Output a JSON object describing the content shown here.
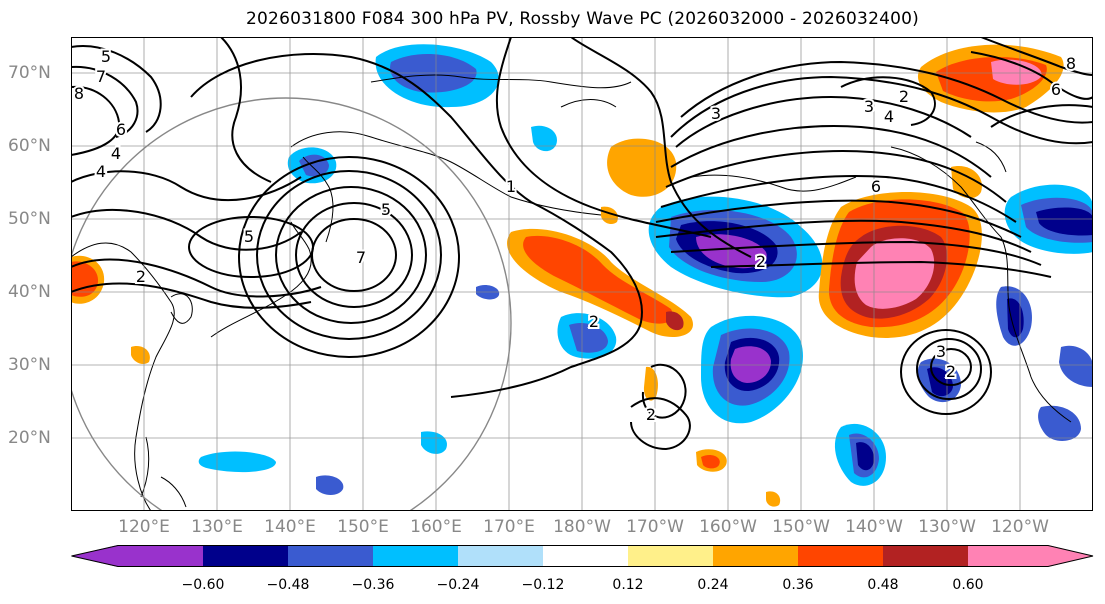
{
  "title": "2026031800 F084 300 hPa PV, Rossby Wave PC (2026032000 - 2026032400)",
  "lon_labels": [
    "120°E",
    "130°E",
    "140°E",
    "150°E",
    "160°E",
    "170°E",
    "180°W",
    "170°W",
    "160°W",
    "150°W",
    "140°W",
    "130°W",
    "120°W"
  ],
  "lat_labels": [
    "70°N",
    "60°N",
    "50°N",
    "40°N",
    "30°N",
    "20°N"
  ],
  "contour_labels": [
    "5",
    "7",
    "8",
    "6",
    "4",
    "4",
    "5",
    "7",
    "5",
    "2",
    "1",
    "3",
    "3",
    "2",
    "4",
    "6",
    "8",
    "6",
    "2",
    "2",
    "2",
    "2",
    "3"
  ],
  "colorbar": {
    "colors": [
      "#9932cc",
      "#00008b",
      "#3a5bd0",
      "#00bfff",
      "#b0e0fa",
      "#ffffff",
      "#fff08a",
      "#ffa500",
      "#ff4500",
      "#b22222",
      "#ff82b4"
    ],
    "ticks": [
      "−0.60",
      "−0.48",
      "−0.36",
      "−0.24",
      "−0.12",
      "0.12",
      "0.24",
      "0.36",
      "0.48",
      "0.60"
    ]
  },
  "shading_colors": {
    "neg_strong": "#9932cc",
    "neg_dark": "#00008b",
    "neg_mid": "#3a5bd0",
    "neg_light": "#00bfff",
    "pos_light": "#ffa500",
    "pos_mid": "#ff4500",
    "pos_strong": "#b22222",
    "pos_max": "#ff82b4"
  }
}
